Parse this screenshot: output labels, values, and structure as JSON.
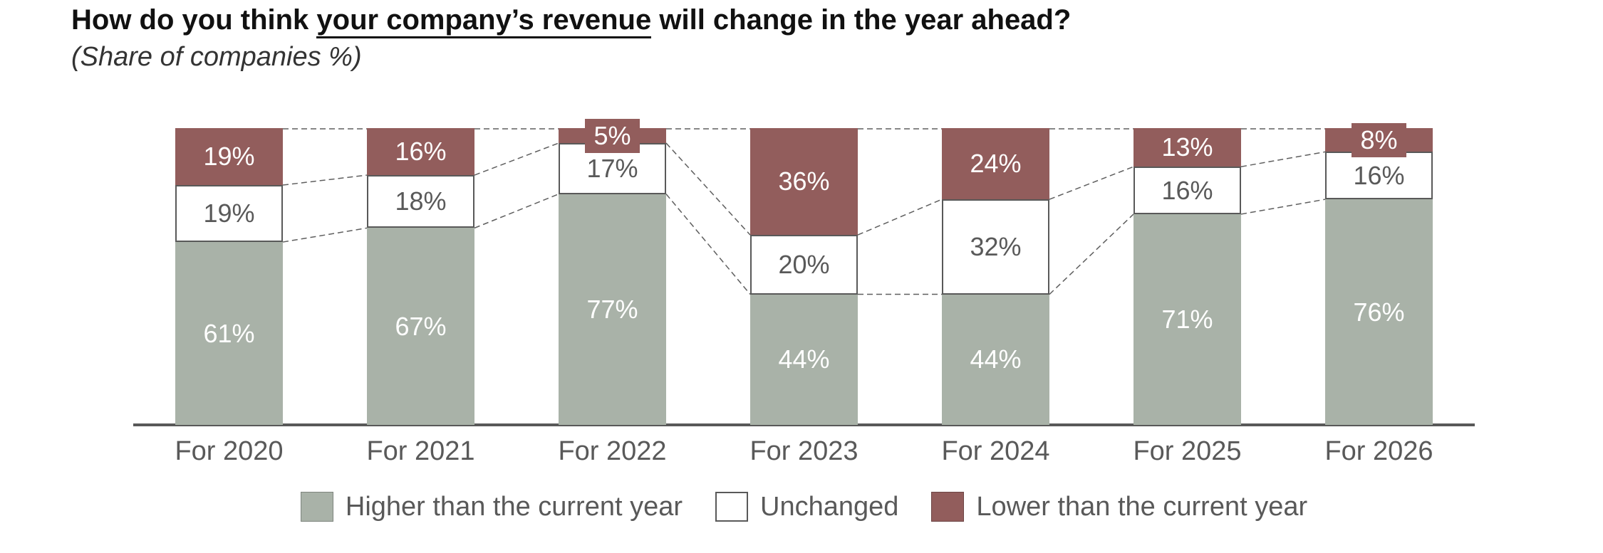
{
  "header": {
    "title_pre": "How do you think ",
    "title_underlined": "your company’s revenue",
    "title_post": " will change in the year ahead?",
    "subtitle": "(Share of companies %)"
  },
  "chart_data": {
    "type": "bar",
    "stacked": true,
    "orientation": "vertical",
    "title": "How do you think your company’s revenue will change in the year ahead?",
    "subtitle": "(Share of companies %)",
    "value_suffix": "%",
    "ylim": [
      0,
      100
    ],
    "grid": false,
    "connector_lines": "dashed",
    "legend_position": "bottom",
    "axis_color": "#595959",
    "label_text_color": "#595959",
    "categories": [
      "For 2020",
      "For 2021",
      "For 2022",
      "For 2023",
      "For 2024",
      "For 2025",
      "For 2026"
    ],
    "series": [
      {
        "key": "higher",
        "name": "Higher than the current year",
        "color": "#a9b2a8",
        "label_color": "#ffffff",
        "values": [
          61,
          67,
          77,
          44,
          44,
          71,
          76
        ]
      },
      {
        "key": "unchanged",
        "name": "Unchanged",
        "color": "#ffffff",
        "label_color": "#595959",
        "values": [
          19,
          18,
          17,
          20,
          32,
          16,
          16
        ]
      },
      {
        "key": "lower",
        "name": "Lower than the current year",
        "color": "#925d5c",
        "label_color": "#ffffff",
        "values": [
          19,
          16,
          5,
          36,
          24,
          13,
          8
        ]
      }
    ]
  }
}
